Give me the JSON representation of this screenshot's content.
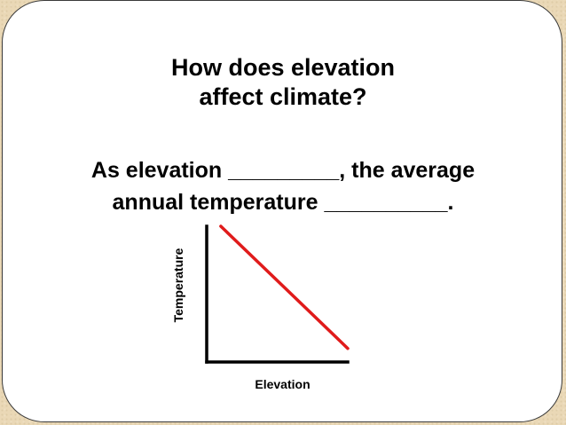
{
  "slide": {
    "title_lines": [
      "How does elevation",
      "affect climate?"
    ],
    "question_lines": [
      "As elevation _________, the average",
      "annual temperature __________."
    ]
  },
  "chart_data": {
    "type": "line",
    "title": "",
    "xlabel": "Elevation",
    "ylabel": "Temperature",
    "grid": false,
    "legend": "none",
    "xlim": [
      0,
      1
    ],
    "ylim": [
      0,
      1
    ],
    "series": [
      {
        "x": [
          0.1,
          1.0
        ],
        "y": [
          1.0,
          0.1
        ],
        "color": "#e01b1b"
      }
    ],
    "axis_color": "#000000"
  }
}
